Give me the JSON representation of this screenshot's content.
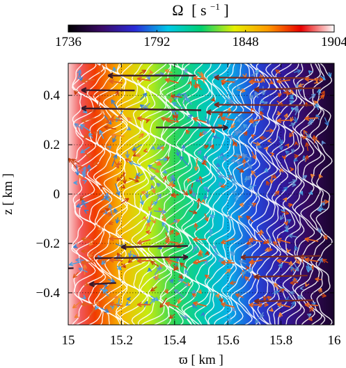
{
  "chart_data": {
    "type": "heatmap",
    "colorbar": {
      "label_symbol": "Ω",
      "label_unit": "[ s",
      "label_exp": "−1",
      "label_close": " ]",
      "min": 1736,
      "max": 1904,
      "ticks": [
        1736,
        1792,
        1848,
        1904
      ],
      "tick_labels": [
        "1736",
        "1792",
        "1848",
        "1904"
      ],
      "colors": [
        "#000000",
        "#3a0a66",
        "#2a2ad8",
        "#00c8e8",
        "#00d070",
        "#e6f000",
        "#ff9a00",
        "#e80000",
        "#ffffff"
      ],
      "placement": "top"
    },
    "xlabel": "ϖ [ km ]",
    "ylabel": "z [ km ]",
    "xlim": [
      15,
      16
    ],
    "ylim": [
      -0.53,
      0.53
    ],
    "x_ticks": [
      15,
      15.2,
      15.4,
      15.6,
      15.8,
      16
    ],
    "x_tick_labels": [
      "15",
      "15.2",
      "15.4",
      "15.6",
      "15.8",
      "16"
    ],
    "y_ticks": [
      0.4,
      0.2,
      0,
      -0.2,
      -0.4
    ],
    "y_tick_labels": [
      "0.4",
      "0.2",
      "0",
      "−0.2",
      "−0.4"
    ],
    "grid": true,
    "omega_profile": {
      "x": [
        15.0,
        15.05,
        15.1,
        15.2,
        15.3,
        15.4,
        15.5,
        15.6,
        15.7,
        15.8,
        15.9,
        16.0
      ],
      "omega": [
        1900,
        1890,
        1875,
        1855,
        1838,
        1824,
        1810,
        1796,
        1782,
        1768,
        1755,
        1745
      ]
    },
    "velocity_arrows_shown": true,
    "contour_lines_shown": true
  }
}
